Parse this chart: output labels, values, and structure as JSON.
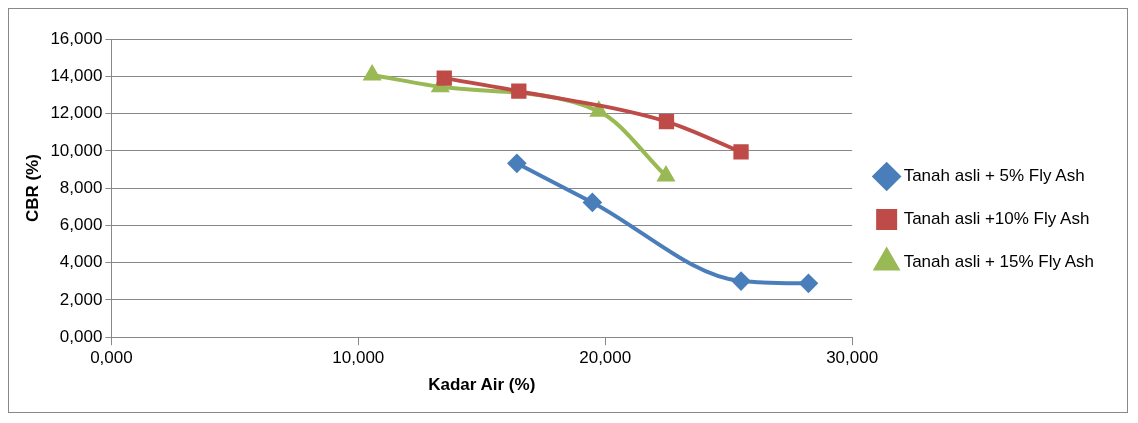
{
  "chart_data": {
    "type": "line",
    "xlabel": "Kadar Air (%)",
    "ylabel": "CBR (%)",
    "xlim": [
      0,
      30
    ],
    "ylim": [
      0,
      16
    ],
    "xticks": [
      {
        "value": 0,
        "label": "0,000"
      },
      {
        "value": 10,
        "label": "10,000"
      },
      {
        "value": 20,
        "label": "20,000"
      },
      {
        "value": 30,
        "label": "30,000"
      }
    ],
    "yticks": [
      {
        "value": 0,
        "label": "0,000"
      },
      {
        "value": 2,
        "label": "2,000"
      },
      {
        "value": 4,
        "label": "4,000"
      },
      {
        "value": 6,
        "label": "6,000"
      },
      {
        "value": 8,
        "label": "8,000"
      },
      {
        "value": 10,
        "label": "10,000"
      },
      {
        "value": 12,
        "label": "12,000"
      },
      {
        "value": 14,
        "label": "14,000"
      },
      {
        "value": 16,
        "label": "16,000"
      }
    ],
    "grid": "y",
    "legend": "right",
    "series": [
      {
        "name": "Tanah asli + 5% Fly Ash",
        "color": "#4a7ebb",
        "marker": "diamond",
        "x": [
          16.42,
          19.48,
          25.5,
          28.23
        ],
        "values": [
          9.33,
          7.23,
          3.01,
          2.89
        ]
      },
      {
        "name": "Tanah asli +10% Fly Ash",
        "color": "#be4b48",
        "marker": "square",
        "x": [
          13.48,
          16.5,
          22.48,
          25.5
        ],
        "values": [
          13.9,
          13.2,
          11.57,
          9.94
        ]
      },
      {
        "name": "Tanah asli + 15% Fly Ash",
        "color": "#98b954",
        "marker": "triangle",
        "x": [
          10.56,
          13.32,
          19.74,
          22.46
        ],
        "values": [
          14.07,
          13.44,
          12.12,
          8.65
        ]
      }
    ]
  }
}
